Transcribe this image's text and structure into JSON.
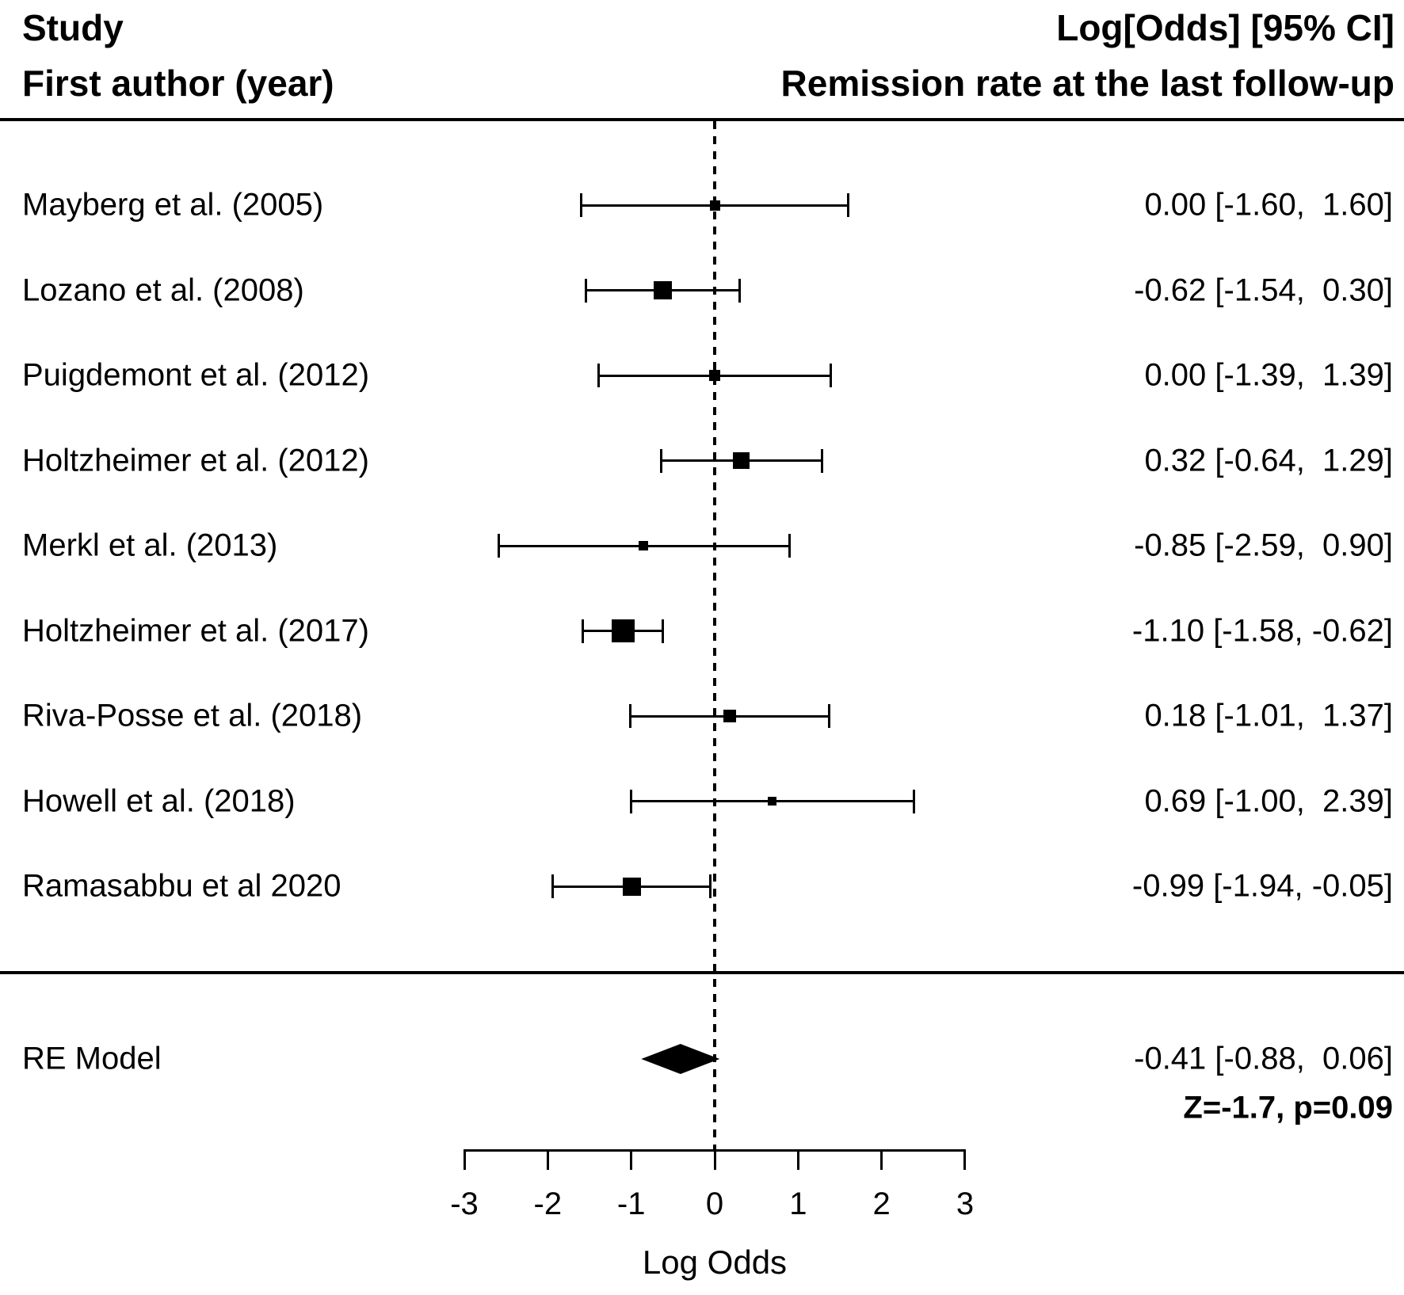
{
  "header": {
    "left_line1": "Study",
    "left_line2": "First author (year)",
    "right_line1": "Log[Odds] [95% CI]",
    "right_line2": "Remission rate at the last follow-up"
  },
  "chart_data": {
    "type": "forest",
    "xlabel": "Log Odds",
    "axis": {
      "min": -3,
      "max": 3,
      "ticks": [
        -3,
        -2,
        -1,
        0,
        1,
        2,
        3
      ],
      "reference_line": 0
    },
    "studies": [
      {
        "label": "Mayberg et al. (2005)",
        "estimate": 0.0,
        "ci_lower": -1.6,
        "ci_upper": 1.6,
        "display": "0.00 [-1.60,  1.60]",
        "marker_size": 13
      },
      {
        "label": "Lozano et al. (2008)",
        "estimate": -0.62,
        "ci_lower": -1.54,
        "ci_upper": 0.3,
        "display": "-0.62 [-1.54,  0.30]",
        "marker_size": 23
      },
      {
        "label": "Puigdemont et al. (2012)",
        "estimate": 0.0,
        "ci_lower": -1.39,
        "ci_upper": 1.39,
        "display": "0.00 [-1.39,  1.39]",
        "marker_size": 14
      },
      {
        "label": "Holtzheimer et al. (2012)",
        "estimate": 0.32,
        "ci_lower": -0.64,
        "ci_upper": 1.29,
        "display": "0.32 [-0.64,  1.29]",
        "marker_size": 21
      },
      {
        "label": "Merkl et al. (2013)",
        "estimate": -0.85,
        "ci_lower": -2.59,
        "ci_upper": 0.9,
        "display": "-0.85 [-2.59,  0.90]",
        "marker_size": 12
      },
      {
        "label": "Holtzheimer et al. (2017)",
        "estimate": -1.1,
        "ci_lower": -1.58,
        "ci_upper": -0.62,
        "display": "-1.10 [-1.58, -0.62]",
        "marker_size": 29
      },
      {
        "label": "Riva-Posse et al. (2018)",
        "estimate": 0.18,
        "ci_lower": -1.01,
        "ci_upper": 1.37,
        "display": "0.18 [-1.01,  1.37]",
        "marker_size": 16
      },
      {
        "label": "Howell et al. (2018)",
        "estimate": 0.69,
        "ci_lower": -1.0,
        "ci_upper": 2.39,
        "display": "0.69 [-1.00,  2.39]",
        "marker_size": 11
      },
      {
        "label": "Ramasabbu et al 2020",
        "estimate": -0.99,
        "ci_lower": -1.94,
        "ci_upper": -0.05,
        "display": "-0.99 [-1.94, -0.05]",
        "marker_size": 23
      }
    ],
    "summary": {
      "label": "RE Model",
      "estimate": -0.41,
      "ci_lower": -0.88,
      "ci_upper": 0.06,
      "display": "-0.41 [-0.88,  0.06]",
      "stats": "Z=-1.7, p=0.09"
    }
  },
  "colors": {
    "ink": "#000000",
    "background": "#ffffff"
  }
}
